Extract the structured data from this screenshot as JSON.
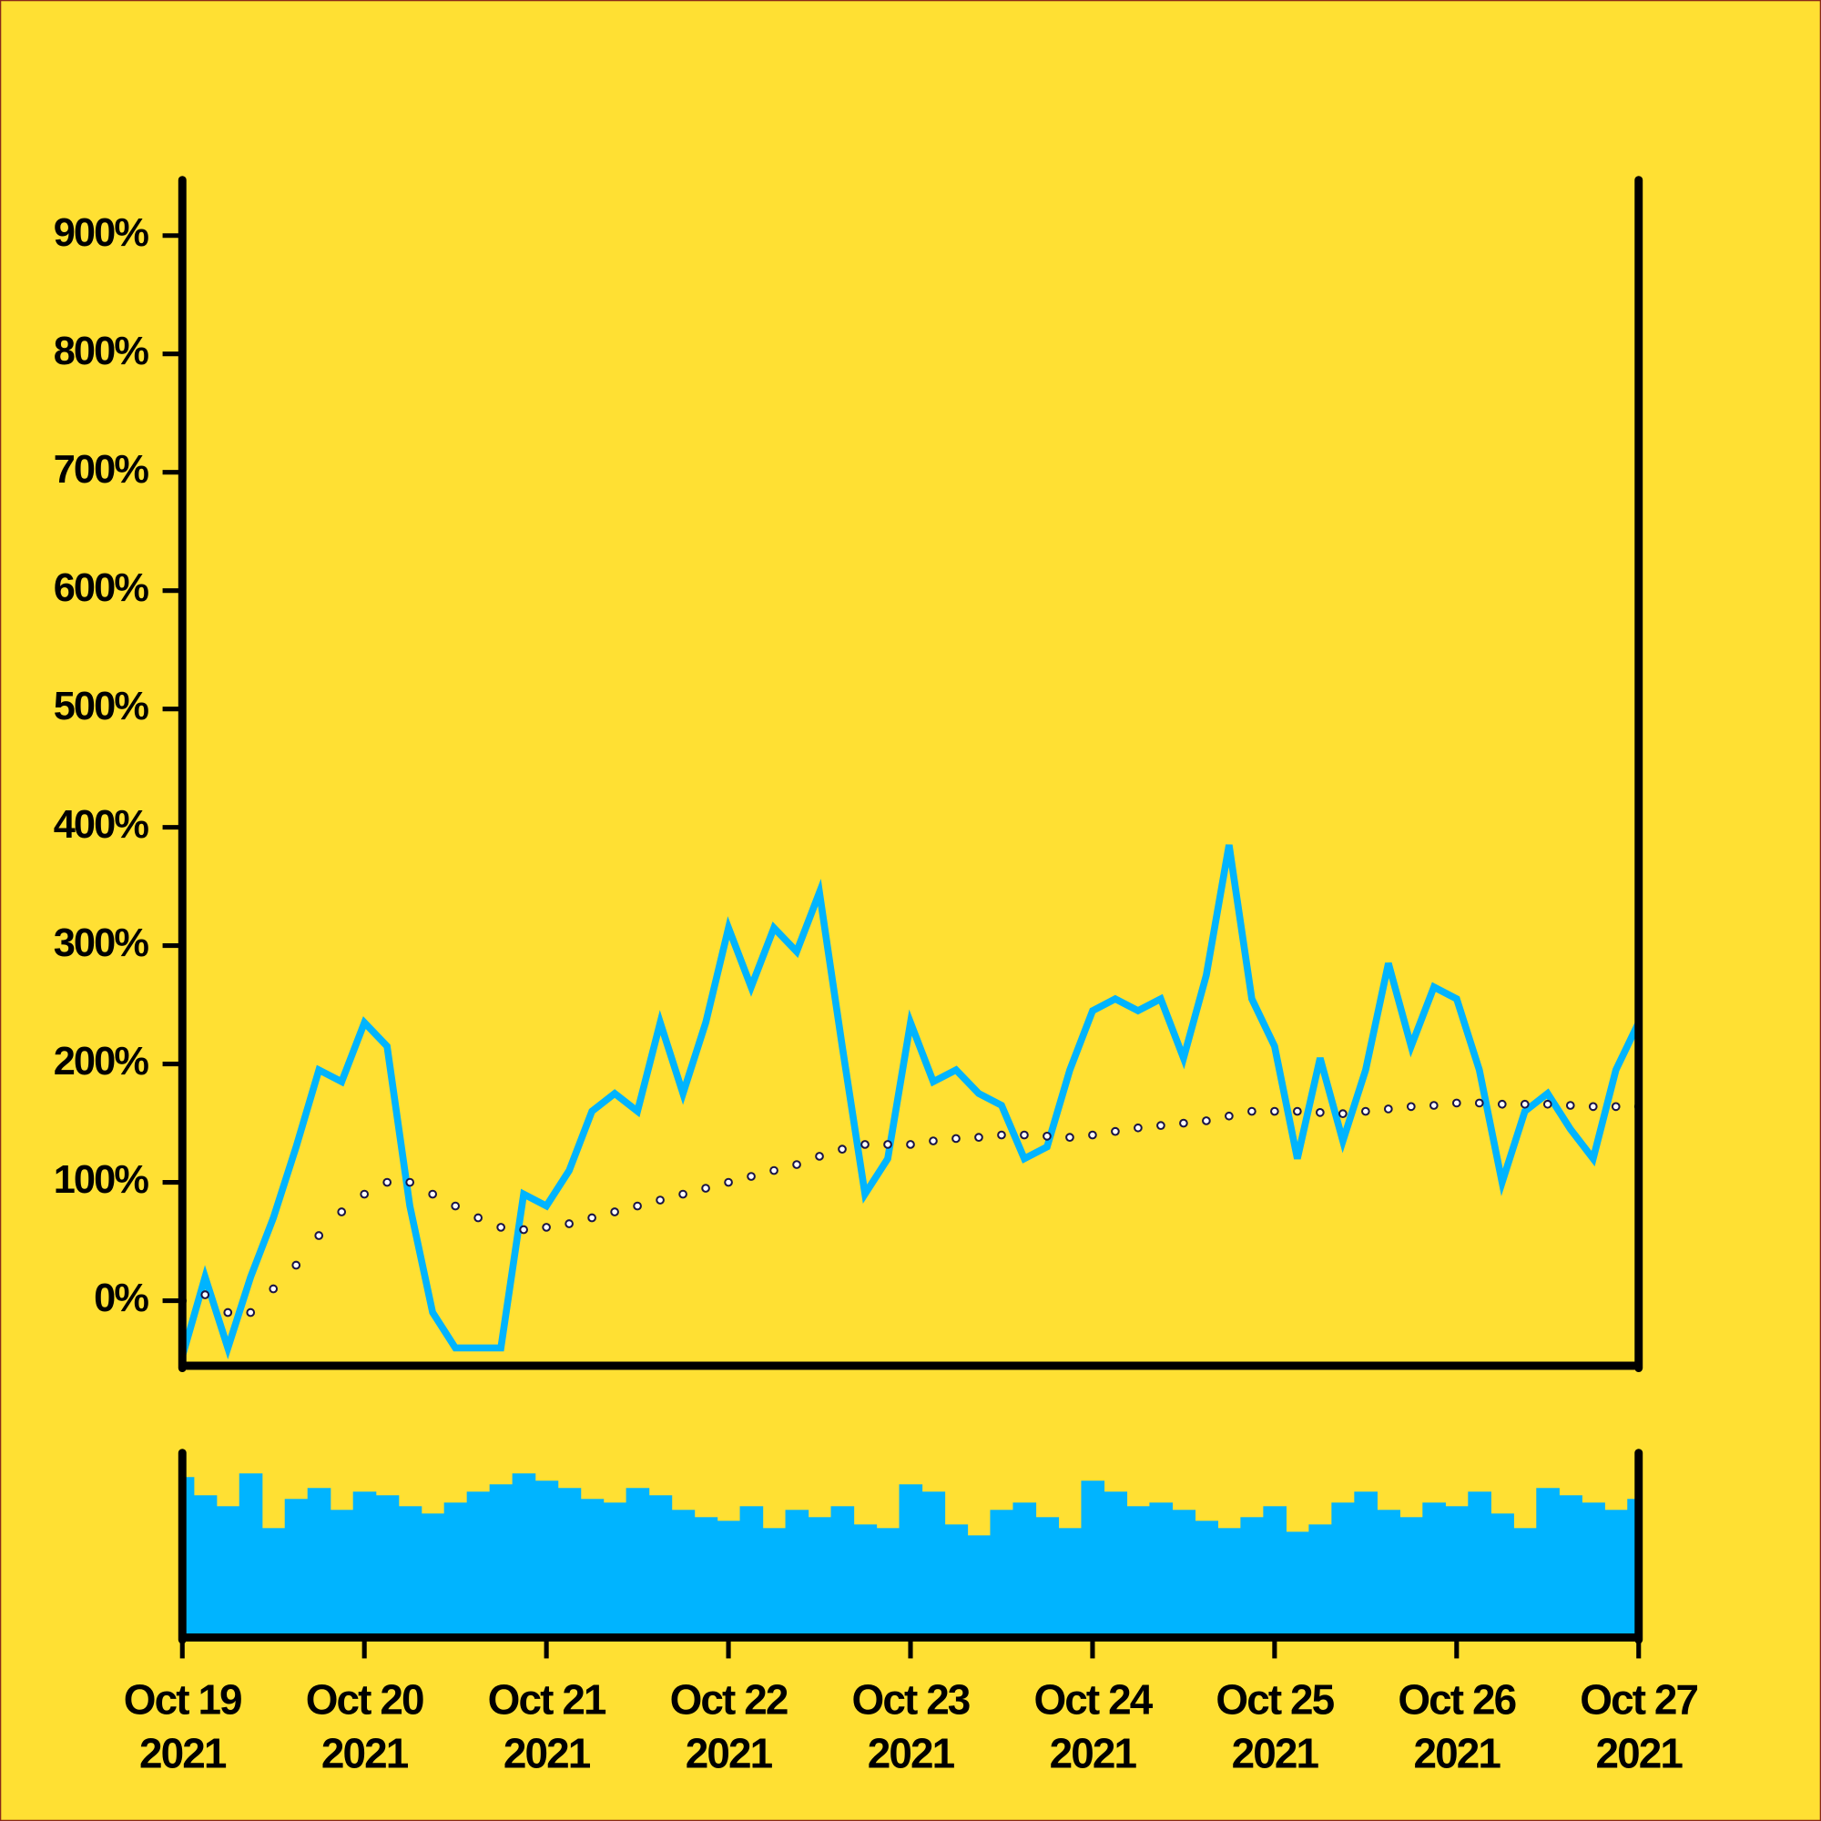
{
  "chart_data": {
    "type": "line",
    "x": [
      "2021-10-19T00:00",
      "2021-10-19T03:00",
      "2021-10-19T06:00",
      "2021-10-19T09:00",
      "2021-10-19T12:00",
      "2021-10-19T15:00",
      "2021-10-19T18:00",
      "2021-10-19T21:00",
      "2021-10-20T00:00",
      "2021-10-20T03:00",
      "2021-10-20T06:00",
      "2021-10-20T09:00",
      "2021-10-20T12:00",
      "2021-10-20T15:00",
      "2021-10-20T18:00",
      "2021-10-20T21:00",
      "2021-10-21T00:00",
      "2021-10-21T03:00",
      "2021-10-21T06:00",
      "2021-10-21T09:00",
      "2021-10-21T12:00",
      "2021-10-21T15:00",
      "2021-10-21T18:00",
      "2021-10-21T21:00",
      "2021-10-22T00:00",
      "2021-10-22T03:00",
      "2021-10-22T06:00",
      "2021-10-22T09:00",
      "2021-10-22T12:00",
      "2021-10-22T15:00",
      "2021-10-22T18:00",
      "2021-10-22T21:00",
      "2021-10-23T00:00",
      "2021-10-23T03:00",
      "2021-10-23T06:00",
      "2021-10-23T09:00",
      "2021-10-23T12:00",
      "2021-10-23T15:00",
      "2021-10-23T18:00",
      "2021-10-23T21:00",
      "2021-10-24T00:00",
      "2021-10-24T03:00",
      "2021-10-24T06:00",
      "2021-10-24T09:00",
      "2021-10-24T12:00",
      "2021-10-24T15:00",
      "2021-10-24T18:00",
      "2021-10-24T21:00",
      "2021-10-25T00:00",
      "2021-10-25T03:00",
      "2021-10-25T06:00",
      "2021-10-25T09:00",
      "2021-10-25T12:00",
      "2021-10-25T15:00",
      "2021-10-25T18:00",
      "2021-10-25T21:00",
      "2021-10-26T00:00",
      "2021-10-26T03:00",
      "2021-10-26T06:00",
      "2021-10-26T09:00",
      "2021-10-26T12:00",
      "2021-10-26T15:00",
      "2021-10-26T18:00",
      "2021-10-26T21:00",
      "2021-10-27T00:00"
    ],
    "series": [
      {
        "color": "#00B4FF",
        "style": "line",
        "values": [
          -47,
          20,
          -40,
          20,
          70,
          130,
          195,
          185,
          235,
          215,
          80,
          -10,
          -40,
          -40,
          -40,
          90,
          80,
          110,
          160,
          175,
          160,
          235,
          175,
          235,
          315,
          265,
          315,
          295,
          345,
          215,
          90,
          120,
          235,
          185,
          195,
          175,
          165,
          120,
          130,
          195,
          245,
          255,
          245,
          255,
          205,
          275,
          385,
          255,
          215,
          120,
          205,
          135,
          195,
          285,
          215,
          265,
          255,
          195,
          100,
          160,
          175,
          145,
          120,
          195,
          235
        ]
      },
      {
        "color": "#1a1446",
        "style": "dots",
        "values": [
          0,
          5,
          -10,
          -10,
          10,
          30,
          55,
          75,
          90,
          100,
          100,
          90,
          80,
          70,
          62,
          60,
          62,
          65,
          70,
          75,
          80,
          85,
          90,
          95,
          100,
          105,
          110,
          115,
          122,
          128,
          132,
          132,
          132,
          135,
          137,
          138,
          140,
          140,
          139,
          138,
          140,
          143,
          146,
          148,
          150,
          152,
          156,
          160,
          160,
          160,
          159,
          158,
          160,
          162,
          164,
          165,
          167,
          167,
          166,
          166,
          166,
          165,
          164,
          164,
          164
        ]
      }
    ],
    "ylim": [
      -55,
      945
    ],
    "yticks": [
      {
        "value": 0,
        "label": "0%"
      },
      {
        "value": 100,
        "label": "100%"
      },
      {
        "value": 200,
        "label": "200%"
      },
      {
        "value": 300,
        "label": "300%"
      },
      {
        "value": 400,
        "label": "400%"
      },
      {
        "value": 500,
        "label": "500%"
      },
      {
        "value": 600,
        "label": "600%"
      },
      {
        "value": 700,
        "label": "700%"
      },
      {
        "value": 800,
        "label": "800%"
      },
      {
        "value": 900,
        "label": "900%"
      }
    ],
    "xlim": [
      "2021-10-19T00:00",
      "2021-10-27T00:00"
    ],
    "xticks": [
      {
        "value": "2021-10-19T00:00",
        "label": "Oct 19 2021"
      },
      {
        "value": "2021-10-20T00:00",
        "label": "Oct 20 2021"
      },
      {
        "value": "2021-10-21T00:00",
        "label": "Oct 21 2021"
      },
      {
        "value": "2021-10-22T00:00",
        "label": "Oct 22 2021"
      },
      {
        "value": "2021-10-23T00:00",
        "label": "Oct 23 2021"
      },
      {
        "value": "2021-10-24T00:00",
        "label": "Oct 24 2021"
      },
      {
        "value": "2021-10-25T00:00",
        "label": "Oct 25 2021"
      },
      {
        "value": "2021-10-26T00:00",
        "label": "Oct 26 2021"
      },
      {
        "value": "2021-10-27T00:00",
        "label": "Oct 27 2021"
      }
    ],
    "volume": {
      "color": "#00B4FF",
      "ylim": [
        0,
        100
      ],
      "values": [
        88,
        78,
        72,
        90,
        60,
        76,
        82,
        70,
        80,
        78,
        72,
        68,
        74,
        80,
        84,
        90,
        86,
        82,
        76,
        74,
        82,
        78,
        70,
        66,
        64,
        72,
        60,
        70,
        66,
        72,
        62,
        60,
        84,
        80,
        62,
        56,
        70,
        74,
        66,
        60,
        86,
        80,
        72,
        74,
        70,
        64,
        60,
        66,
        72,
        58,
        62,
        74,
        80,
        70,
        66,
        74,
        72,
        80,
        68,
        60,
        82,
        78,
        74,
        70,
        76
      ]
    }
  }
}
